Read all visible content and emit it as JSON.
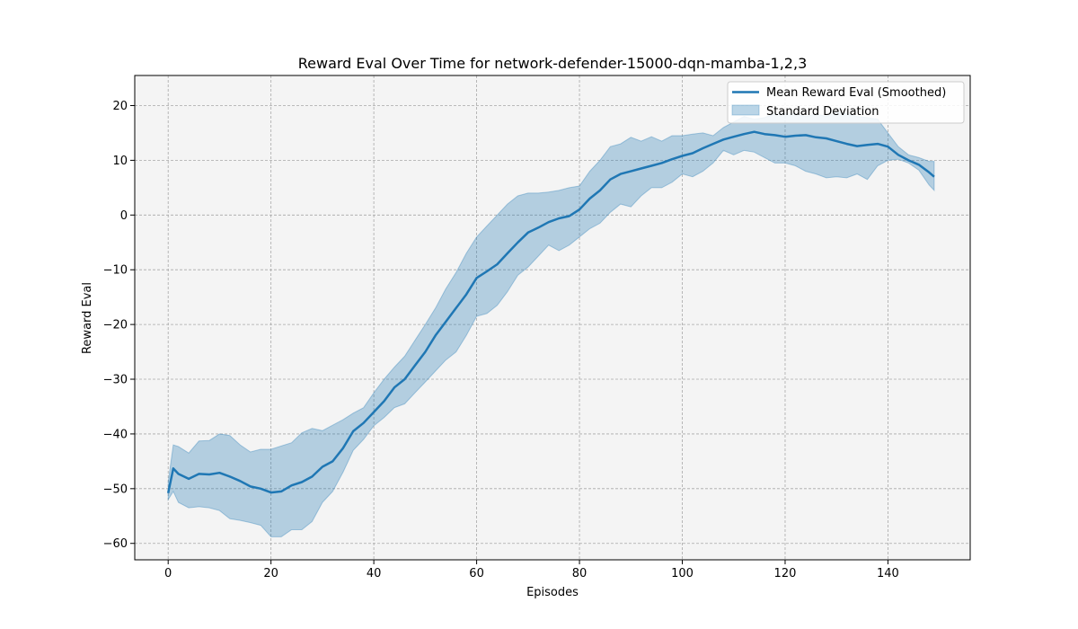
{
  "chart_data": {
    "type": "line",
    "title": "Reward Eval Over Time for network-defender-15000-dqn-mamba-1,2,3",
    "xlabel": "Episodes",
    "ylabel": "Reward Eval",
    "xlim": [
      -6.5,
      156
    ],
    "ylim": [
      -63,
      25.5
    ],
    "xticks": [
      0,
      20,
      40,
      60,
      80,
      100,
      120,
      140
    ],
    "yticks": [
      -60,
      -50,
      -40,
      -30,
      -20,
      -10,
      0,
      10,
      20
    ],
    "grid": true,
    "legend_position": "top-right",
    "series": [
      {
        "name": "Mean Reward Eval (Smoothed)",
        "kind": "line",
        "color": "#1f77b4",
        "x": [
          0,
          1,
          2,
          4,
          6,
          8,
          10,
          12,
          14,
          16,
          18,
          20,
          22,
          24,
          26,
          28,
          30,
          32,
          34,
          36,
          38,
          40,
          42,
          44,
          46,
          48,
          50,
          52,
          54,
          56,
          58,
          60,
          62,
          64,
          66,
          68,
          70,
          72,
          74,
          76,
          78,
          80,
          82,
          84,
          86,
          88,
          90,
          92,
          94,
          96,
          98,
          100,
          102,
          104,
          106,
          108,
          110,
          112,
          114,
          116,
          118,
          120,
          122,
          124,
          126,
          128,
          130,
          132,
          134,
          136,
          138,
          140,
          142,
          144,
          146,
          148,
          149
        ],
        "y": [
          -50.8,
          -46.3,
          -47.3,
          -48.2,
          -47.3,
          -47.4,
          -47.1,
          -47.8,
          -48.6,
          -49.6,
          -50.0,
          -50.7,
          -50.5,
          -49.4,
          -48.8,
          -47.8,
          -46.0,
          -45.0,
          -42.6,
          -39.5,
          -38.0,
          -36.0,
          -34.0,
          -31.5,
          -30.0,
          -27.5,
          -25.0,
          -22.0,
          -19.5,
          -17.0,
          -14.5,
          -11.5,
          -10.3,
          -9.0,
          -7.0,
          -5.0,
          -3.2,
          -2.3,
          -1.3,
          -0.6,
          -0.2,
          1.0,
          3.0,
          4.5,
          6.5,
          7.5,
          8.0,
          8.5,
          9.0,
          9.5,
          10.2,
          10.8,
          11.3,
          12.2,
          13.0,
          13.8,
          14.3,
          14.8,
          15.2,
          14.8,
          14.6,
          14.3,
          14.5,
          14.6,
          14.2,
          14.0,
          13.5,
          13.0,
          12.6,
          12.8,
          13.0,
          12.5,
          11.0,
          10.0,
          9.2,
          7.8,
          7.0
        ]
      },
      {
        "name": "Standard Deviation",
        "kind": "band",
        "color": "#1f77b4",
        "x": [
          0,
          1,
          2,
          4,
          6,
          8,
          10,
          12,
          14,
          16,
          18,
          20,
          22,
          24,
          26,
          28,
          30,
          32,
          34,
          36,
          38,
          40,
          42,
          44,
          46,
          48,
          50,
          52,
          54,
          56,
          58,
          60,
          62,
          64,
          66,
          68,
          70,
          72,
          74,
          76,
          78,
          80,
          82,
          84,
          86,
          88,
          90,
          92,
          94,
          96,
          98,
          100,
          102,
          104,
          106,
          108,
          110,
          112,
          114,
          116,
          118,
          120,
          122,
          124,
          126,
          128,
          130,
          132,
          134,
          136,
          138,
          140,
          142,
          144,
          146,
          148,
          149
        ],
        "upper": [
          -48.8,
          -42.0,
          -42.3,
          -43.5,
          -41.3,
          -41.2,
          -40.0,
          -40.3,
          -42.0,
          -43.3,
          -42.8,
          -42.8,
          -42.2,
          -41.6,
          -39.8,
          -39.0,
          -39.4,
          -38.4,
          -37.4,
          -36.2,
          -35.2,
          -32.5,
          -30.0,
          -27.8,
          -25.8,
          -22.9,
          -20.0,
          -17.0,
          -13.5,
          -10.5,
          -7.0,
          -4.0,
          -2.0,
          0.0,
          2.0,
          3.5,
          4.0,
          4.0,
          4.2,
          4.5,
          5.0,
          5.3,
          8.0,
          10.0,
          12.5,
          13.0,
          14.2,
          13.5,
          14.3,
          13.5,
          14.5,
          14.5,
          14.8,
          15.0,
          14.5,
          16.0,
          17.0,
          18.0,
          17.5,
          17.8,
          18.5,
          18.5,
          18.5,
          18.0,
          18.5,
          18.0,
          18.8,
          18.5,
          18.0,
          17.8,
          17.5,
          15.0,
          12.5,
          11.0,
          10.5,
          9.8,
          9.8
        ],
        "lower": [
          -52.0,
          -50.5,
          -52.5,
          -53.5,
          -53.3,
          -53.5,
          -54.0,
          -55.5,
          -55.8,
          -56.2,
          -56.7,
          -58.8,
          -58.8,
          -57.5,
          -57.5,
          -56.0,
          -52.5,
          -50.5,
          -47.0,
          -43.0,
          -41.0,
          -38.5,
          -37.0,
          -35.2,
          -34.5,
          -32.5,
          -30.5,
          -28.5,
          -26.5,
          -25.0,
          -22.0,
          -18.5,
          -18.0,
          -16.5,
          -14.0,
          -11.0,
          -9.5,
          -7.5,
          -5.5,
          -6.5,
          -5.5,
          -4.0,
          -2.5,
          -1.5,
          0.5,
          2.0,
          1.5,
          3.5,
          5.0,
          5.0,
          6.0,
          7.5,
          7.0,
          8.0,
          9.5,
          11.8,
          11.0,
          11.8,
          11.5,
          10.5,
          9.5,
          9.5,
          9.0,
          8.0,
          7.5,
          6.8,
          7.0,
          6.8,
          7.5,
          6.5,
          9.0,
          10.0,
          10.2,
          9.5,
          8.2,
          5.5,
          4.5
        ]
      }
    ],
    "legend": [
      {
        "label": "Mean Reward Eval (Smoothed)",
        "kind": "line"
      },
      {
        "label": "Standard Deviation",
        "kind": "band"
      }
    ],
    "colors": {
      "line": "#1f77b4",
      "band_fill": "#1f77b4",
      "plot_background": "#f4f4f4"
    }
  }
}
